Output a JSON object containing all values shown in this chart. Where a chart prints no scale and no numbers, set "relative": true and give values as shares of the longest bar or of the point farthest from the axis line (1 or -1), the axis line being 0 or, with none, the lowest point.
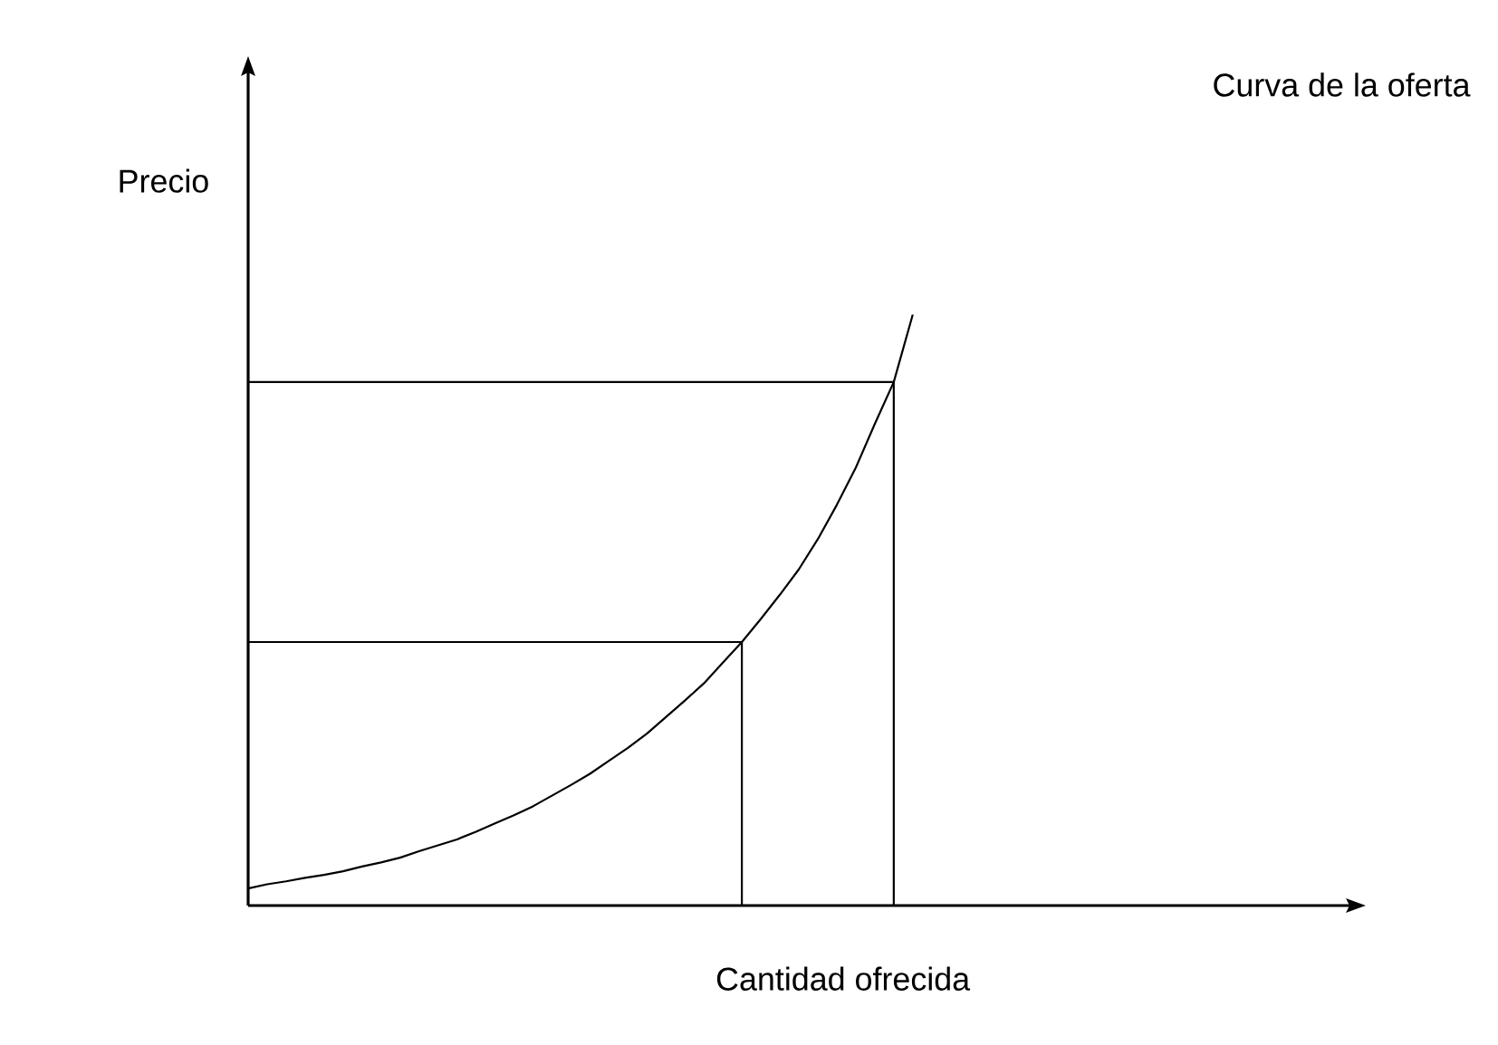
{
  "chart_data": {
    "type": "line",
    "title": "Curva de la oferta",
    "xlabel": "Cantidad ofrecida",
    "ylabel": "Precio",
    "relative": true,
    "marker": "none",
    "line_style": "solid",
    "categories": [
      null,
      null,
      null,
      null,
      null,
      null,
      null,
      null,
      null,
      null,
      null,
      null,
      null,
      null,
      null,
      null,
      null,
      null,
      null,
      null,
      null,
      null,
      null,
      null,
      null,
      null,
      null,
      null,
      null,
      null,
      null,
      null,
      null,
      null,
      null,
      null,
      null,
      null,
      null,
      null,
      null,
      null,
      null,
      null,
      null,
      null,
      null,
      null,
      null,
      null,
      null,
      null,
      null,
      null,
      null,
      null,
      null,
      null,
      null
    ],
    "series": [
      {
        "color": "#000000",
        "values": [
          0.029,
          0.036,
          0.041,
          0.047,
          0.052,
          0.058,
          0.066,
          0.073,
          0.081,
          0.092,
          0.102,
          0.112,
          0.125,
          0.139,
          0.153,
          0.168,
          0.186,
          0.204,
          0.223,
          0.245,
          0.267,
          0.291,
          0.319,
          0.347,
          0.376,
          0.411,
          0.446,
          0.485,
          0.526,
          0.569,
          0.62,
          0.678,
          0.741,
          0.815,
          0.886,
          1,
          null,
          null,
          null,
          null,
          null,
          null,
          null,
          null,
          null,
          null,
          null,
          null,
          null,
          null,
          null,
          null,
          null,
          null,
          null,
          null,
          null,
          null,
          null
        ]
      },
      {
        "type": "step",
        "color": "#000000",
        "values": [
          0.446,
          0.446,
          0.446,
          0.446,
          0.446,
          0.446,
          0.446,
          0.446,
          0.446,
          0.446,
          0.446,
          0.446,
          0.446,
          0.446,
          0.446,
          0.446,
          0.446,
          0.446,
          0.446,
          0.446,
          0.446,
          0.446,
          0.446,
          0.446,
          0.446,
          0.446,
          0.446,
          0,
          null,
          null,
          null,
          null,
          null,
          null,
          null,
          null,
          null,
          null,
          null,
          null,
          null,
          null,
          null,
          null,
          null,
          null,
          null,
          null,
          null,
          null,
          null,
          null,
          null,
          null,
          null,
          null,
          null,
          null,
          null
        ]
      },
      {
        "type": "step",
        "color": "#000000",
        "values": [
          0.886,
          0.886,
          0.886,
          0.886,
          0.886,
          0.886,
          0.886,
          0.886,
          0.886,
          0.886,
          0.886,
          0.886,
          0.886,
          0.886,
          0.886,
          0.886,
          0.886,
          0.886,
          0.886,
          0.886,
          0.886,
          0.886,
          0.886,
          0.886,
          0.886,
          0.886,
          0.886,
          0.886,
          0.886,
          0.886,
          0.886,
          0.886,
          0.886,
          0.886,
          0.886,
          0,
          null,
          null,
          null,
          null,
          null,
          null,
          null,
          null,
          null,
          null,
          null,
          null,
          null,
          null,
          null,
          null,
          null,
          null,
          null,
          null,
          null,
          null,
          null
        ]
      }
    ]
  }
}
